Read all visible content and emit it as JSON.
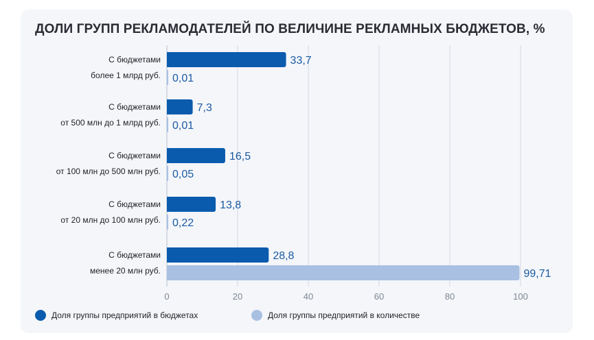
{
  "title": "ДОЛИ ГРУПП РЕКЛАМОДАТЕЛЕЙ ПО ВЕЛИЧИНЕ РЕКЛАМНЫХ БЮДЖЕТОВ, %",
  "colors": {
    "budget": "#0a5bad",
    "count": "#a9c0e2",
    "grid": "#d3d8e0",
    "card": "#f4f6fa"
  },
  "chart_data": {
    "type": "bar",
    "orientation": "horizontal",
    "title": "ДОЛИ ГРУПП РЕКЛАМОДАТЕЛЕЙ ПО ВЕЛИЧИНЕ РЕКЛАМНЫХ БЮДЖЕТОВ, %",
    "categories": [
      [
        "С бюджетами",
        "более 1 млрд руб."
      ],
      [
        "С бюджетами",
        "от 500 млн до 1 млрд руб."
      ],
      [
        "С бюджетами",
        "от 100 млн до 500 млн руб."
      ],
      [
        "С бюджетами",
        "от 20 млн до 100 млн руб."
      ],
      [
        "С бюджетами",
        "менее 20 млн руб."
      ]
    ],
    "series": [
      {
        "name": "Доля группы предприятий в бюджетах",
        "values": [
          33.7,
          7.3,
          16.5,
          13.8,
          28.8
        ],
        "labels": [
          "33,7",
          "7,3",
          "16,5",
          "13,8",
          "28,8"
        ]
      },
      {
        "name": "Доля группы предприятий в количестве",
        "values": [
          0.01,
          0.01,
          0.05,
          0.22,
          99.71
        ],
        "labels": [
          "0,01",
          "0,01",
          "0,05",
          "0,22",
          "99,71"
        ]
      }
    ],
    "xlim": [
      0,
      100
    ],
    "xticks": [
      0,
      20,
      40,
      60,
      80,
      100
    ],
    "grid": "vertical",
    "legend": "bottom-left"
  }
}
